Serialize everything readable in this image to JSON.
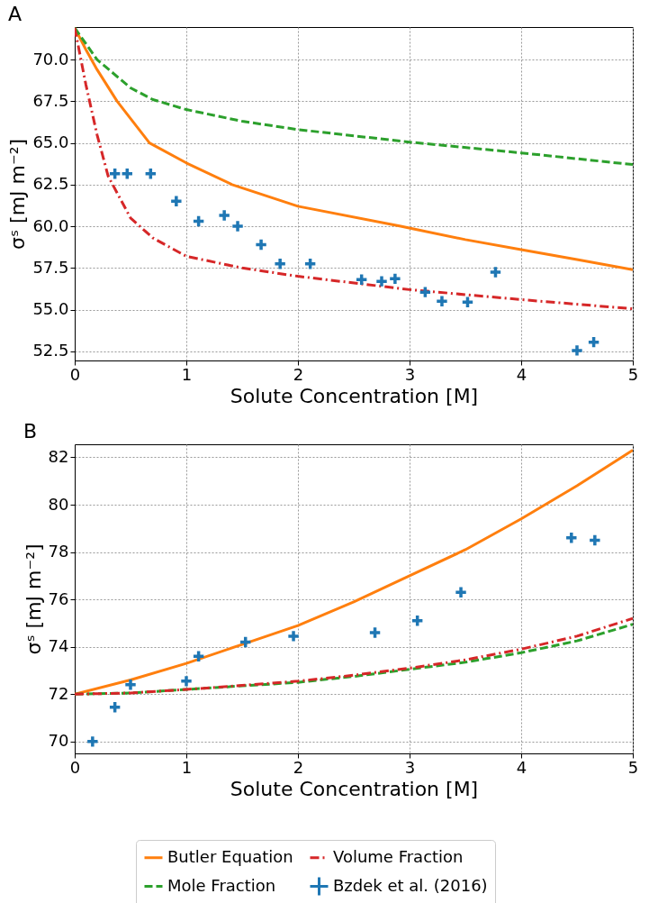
{
  "chart_data": [
    {
      "type": "line",
      "title": "A",
      "xlabel": "Solute Concentration [M]",
      "ylabel": "σˢ [mJ m⁻²]",
      "xlim": [
        0,
        5
      ],
      "xticks": [
        0,
        1,
        2,
        3,
        4,
        5
      ],
      "ylim": [
        51.95,
        71.95
      ],
      "yticks": [
        {
          "value": 52.5,
          "label": "52.5"
        },
        {
          "value": 55,
          "label": "55.0"
        },
        {
          "value": 57.5,
          "label": "57.5"
        },
        {
          "value": 60,
          "label": "60.0"
        },
        {
          "value": 62.5,
          "label": "62.5"
        },
        {
          "value": 65,
          "label": "65.0"
        },
        {
          "value": 67.5,
          "label": "67.5"
        },
        {
          "value": 70,
          "label": "70.0"
        }
      ],
      "grid": true,
      "series": [
        {
          "type": "line",
          "color": "#ff7f0e",
          "line_style": "solid",
          "x": [
            0,
            0.1,
            0.2,
            0.38,
            0.67,
            1,
            1.41,
            2,
            2.92,
            3.5,
            4,
            4.5,
            5
          ],
          "values": [
            71.9,
            70.6,
            69.4,
            67.5,
            65.0,
            63.8,
            62.5,
            61.2,
            60.0,
            59.2,
            58.6,
            58.0,
            57.4
          ]
        },
        {
          "type": "line",
          "color": "#2ca02c",
          "line_style": "dashed",
          "x": [
            0,
            0.2,
            0.5,
            0.7,
            1,
            1.5,
            2,
            3,
            4,
            5
          ],
          "values": [
            71.9,
            70.0,
            68.3,
            67.6,
            67.0,
            66.3,
            65.8,
            65.05,
            64.4,
            63.7
          ]
        },
        {
          "type": "line",
          "color": "#d62728",
          "line_style": "dashdot",
          "x": [
            0,
            0.1,
            0.2,
            0.3,
            0.5,
            0.7,
            1,
            1.5,
            2,
            3,
            4,
            5
          ],
          "values": [
            71.9,
            68.5,
            65.5,
            63.0,
            60.5,
            59.3,
            58.2,
            57.5,
            57.0,
            56.2,
            55.6,
            55.05
          ]
        },
        {
          "type": "scatter",
          "color": "#1f77b4",
          "marker": "cross",
          "x": [
            0.36,
            0.47,
            0.68,
            0.91,
            1.11,
            1.34,
            1.46,
            1.67,
            1.84,
            2.11,
            2.57,
            2.75,
            2.87,
            3.14,
            3.29,
            3.52,
            3.77,
            4.5,
            4.65
          ],
          "values": [
            63.15,
            63.15,
            63.15,
            61.5,
            60.3,
            60.65,
            60.0,
            58.9,
            57.75,
            57.75,
            56.8,
            56.7,
            56.85,
            56.05,
            55.5,
            55.45,
            57.25,
            52.55,
            53.05
          ]
        }
      ]
    },
    {
      "type": "line",
      "title": "B",
      "xlabel": "Solute Concentration [M]",
      "ylabel": "σˢ [mJ m⁻²]",
      "xlim": [
        0,
        5
      ],
      "xticks": [
        0,
        1,
        2,
        3,
        4,
        5
      ],
      "ylim": [
        69.5,
        82.55
      ],
      "yticks": [
        70,
        72,
        74,
        76,
        78,
        80,
        82
      ],
      "grid": true,
      "legend": "bottom",
      "series": [
        {
          "name": "Butler Equation",
          "type": "line",
          "color": "#ff7f0e",
          "line_style": "solid",
          "x": [
            0,
            0.5,
            1,
            1.5,
            2,
            2.5,
            3,
            3.5,
            4,
            4.5,
            5
          ],
          "values": [
            72.0,
            72.6,
            73.3,
            74.1,
            74.9,
            75.9,
            77.0,
            78.1,
            79.4,
            80.8,
            82.3
          ]
        },
        {
          "name": "Mole Fraction",
          "type": "line",
          "color": "#2ca02c",
          "line_style": "dashed",
          "x": [
            0,
            0.5,
            1,
            1.5,
            2,
            2.5,
            3,
            3.5,
            4,
            4.5,
            5
          ],
          "values": [
            72.0,
            72.05,
            72.2,
            72.35,
            72.5,
            72.75,
            73.05,
            73.35,
            73.75,
            74.25,
            74.95
          ]
        },
        {
          "name": "Volume Fraction",
          "type": "line",
          "color": "#d62728",
          "line_style": "dashdot",
          "x": [
            0,
            0.5,
            1,
            1.5,
            2,
            2.5,
            3,
            3.5,
            4,
            4.5,
            5
          ],
          "values": [
            72.0,
            72.05,
            72.2,
            72.37,
            72.55,
            72.8,
            73.1,
            73.45,
            73.9,
            74.45,
            75.2
          ]
        },
        {
          "name": "Bzdek et al. (2016)",
          "type": "scatter",
          "color": "#1f77b4",
          "marker": "cross",
          "x": [
            0.16,
            0.36,
            0.5,
            1.0,
            1.11,
            1.53,
            1.96,
            2.69,
            3.07,
            3.46,
            4.45,
            4.66
          ],
          "values": [
            70.0,
            71.45,
            72.4,
            72.55,
            73.6,
            74.2,
            74.45,
            74.6,
            75.1,
            76.3,
            78.6,
            78.5
          ]
        }
      ]
    }
  ]
}
